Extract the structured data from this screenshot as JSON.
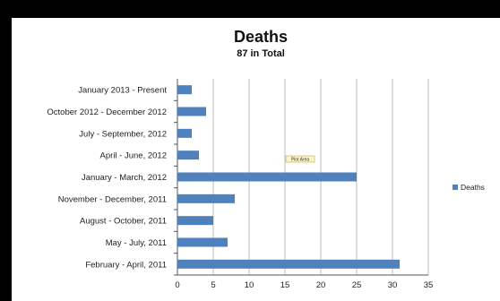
{
  "chart_data": {
    "type": "bar",
    "orientation": "horizontal",
    "title": "Deaths",
    "subtitle": "87 in Total",
    "categories": [
      "January 2013 - Present",
      "October 2012 - December 2012",
      "July - September, 2012",
      "April - June, 2012",
      "January - March, 2012",
      "November - December, 2011",
      "August - October, 2011",
      "May - July, 2011",
      "February - April, 2011"
    ],
    "series": [
      {
        "name": "Deaths",
        "values": [
          2,
          4,
          2,
          3,
          25,
          8,
          5,
          7,
          31
        ],
        "color": "#4F81BD"
      }
    ],
    "xlim": [
      0,
      35
    ],
    "xticks": [
      0,
      5,
      10,
      15,
      20,
      25,
      30,
      35
    ],
    "grid": true,
    "legend_position": "right",
    "tooltip": "Plot Area"
  }
}
